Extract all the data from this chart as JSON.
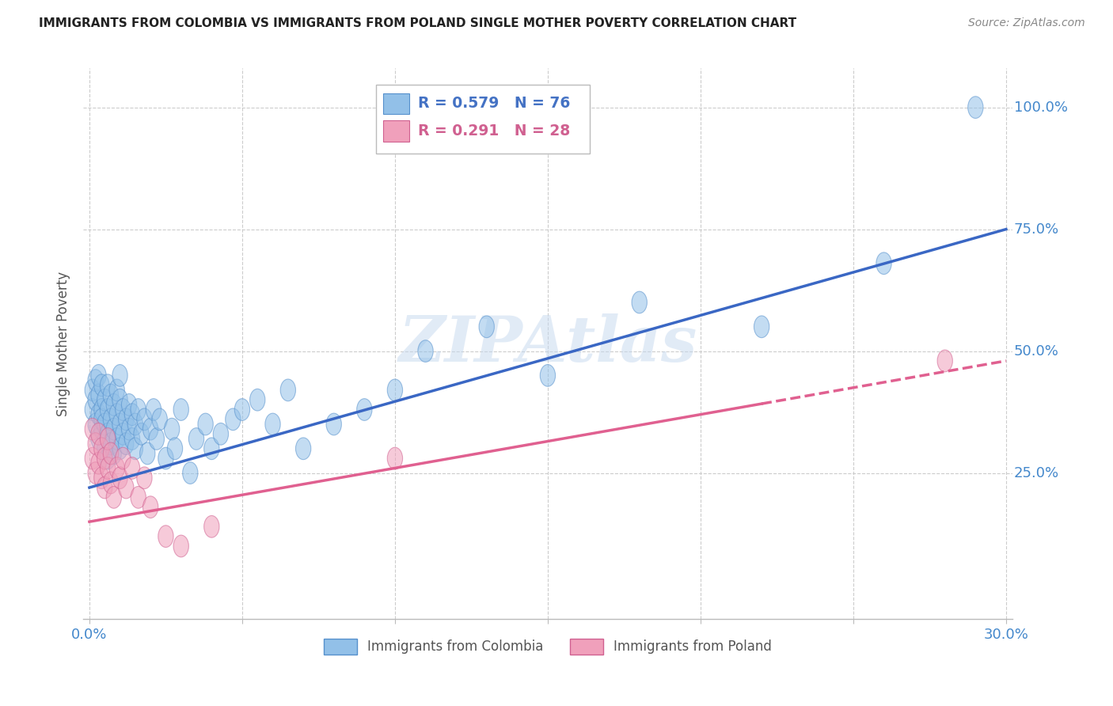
{
  "title": "IMMIGRANTS FROM COLOMBIA VS IMMIGRANTS FROM POLAND SINGLE MOTHER POVERTY CORRELATION CHART",
  "source": "Source: ZipAtlas.com",
  "ylabel": "Single Mother Poverty",
  "xlim": [
    -0.002,
    0.302
  ],
  "ylim": [
    -0.05,
    1.08
  ],
  "xticks": [
    0.0,
    0.05,
    0.1,
    0.15,
    0.2,
    0.25,
    0.3
  ],
  "xtick_labels": [
    "0.0%",
    "",
    "",
    "",
    "",
    "",
    "30.0%"
  ],
  "ytick_positions": [
    0.25,
    0.5,
    0.75,
    1.0
  ],
  "ytick_labels": [
    "25.0%",
    "50.0%",
    "75.0%",
    "100.0%"
  ],
  "blue_color": "#92C0E8",
  "pink_color": "#F0A0BB",
  "blue_edge_color": "#5590CC",
  "pink_edge_color": "#D06090",
  "blue_line_color": "#3A67C4",
  "pink_line_color": "#E06090",
  "legend_R1": "R = 0.579",
  "legend_N1": "N = 76",
  "legend_R2": "R = 0.291",
  "legend_N2": "N = 28",
  "watermark": "ZIPAtlas",
  "background_color": "#ffffff",
  "grid_color": "#cccccc",
  "blue_label": "Immigrants from Colombia",
  "pink_label": "Immigrants from Poland",
  "blue_x": [
    0.001,
    0.001,
    0.002,
    0.002,
    0.002,
    0.003,
    0.003,
    0.003,
    0.003,
    0.004,
    0.004,
    0.004,
    0.004,
    0.005,
    0.005,
    0.005,
    0.006,
    0.006,
    0.006,
    0.006,
    0.007,
    0.007,
    0.007,
    0.008,
    0.008,
    0.008,
    0.009,
    0.009,
    0.009,
    0.01,
    0.01,
    0.01,
    0.01,
    0.011,
    0.011,
    0.012,
    0.012,
    0.013,
    0.013,
    0.014,
    0.014,
    0.015,
    0.015,
    0.016,
    0.017,
    0.018,
    0.019,
    0.02,
    0.021,
    0.022,
    0.023,
    0.025,
    0.027,
    0.028,
    0.03,
    0.033,
    0.035,
    0.038,
    0.04,
    0.043,
    0.047,
    0.05,
    0.055,
    0.06,
    0.065,
    0.07,
    0.08,
    0.09,
    0.1,
    0.11,
    0.13,
    0.15,
    0.18,
    0.22,
    0.26,
    0.29
  ],
  "blue_y": [
    0.38,
    0.42,
    0.35,
    0.4,
    0.44,
    0.32,
    0.37,
    0.41,
    0.45,
    0.34,
    0.38,
    0.43,
    0.36,
    0.3,
    0.35,
    0.4,
    0.28,
    0.33,
    0.38,
    0.43,
    0.31,
    0.36,
    0.41,
    0.29,
    0.34,
    0.39,
    0.32,
    0.37,
    0.42,
    0.3,
    0.35,
    0.4,
    0.45,
    0.33,
    0.38,
    0.31,
    0.36,
    0.34,
    0.39,
    0.32,
    0.37,
    0.3,
    0.35,
    0.38,
    0.33,
    0.36,
    0.29,
    0.34,
    0.38,
    0.32,
    0.36,
    0.28,
    0.34,
    0.3,
    0.38,
    0.25,
    0.32,
    0.35,
    0.3,
    0.33,
    0.36,
    0.38,
    0.4,
    0.35,
    0.42,
    0.3,
    0.35,
    0.38,
    0.42,
    0.5,
    0.55,
    0.45,
    0.6,
    0.55,
    0.68,
    1.0
  ],
  "pink_x": [
    0.001,
    0.001,
    0.002,
    0.002,
    0.003,
    0.003,
    0.004,
    0.004,
    0.005,
    0.005,
    0.006,
    0.006,
    0.007,
    0.007,
    0.008,
    0.009,
    0.01,
    0.011,
    0.012,
    0.014,
    0.016,
    0.018,
    0.02,
    0.025,
    0.03,
    0.04,
    0.1,
    0.28
  ],
  "pink_y": [
    0.28,
    0.34,
    0.25,
    0.31,
    0.27,
    0.33,
    0.24,
    0.3,
    0.22,
    0.28,
    0.26,
    0.32,
    0.23,
    0.29,
    0.2,
    0.26,
    0.24,
    0.28,
    0.22,
    0.26,
    0.2,
    0.24,
    0.18,
    0.12,
    0.1,
    0.14,
    0.28,
    0.48
  ],
  "blue_trend_x0": 0.0,
  "blue_trend_y0": 0.22,
  "blue_trend_x1": 0.3,
  "blue_trend_y1": 0.75,
  "pink_trend_x0": 0.0,
  "pink_trend_y0": 0.15,
  "pink_trend_x1": 0.3,
  "pink_trend_y1": 0.48
}
